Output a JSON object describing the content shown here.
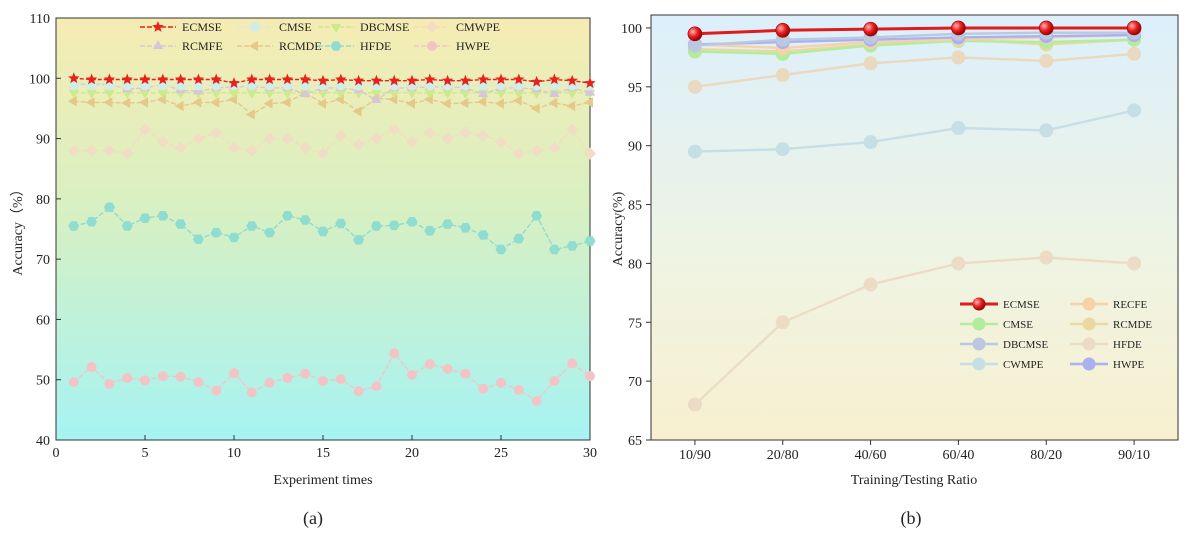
{
  "figure": {
    "caption_a": "(a)",
    "caption_b": "(b)"
  },
  "chart_data": [
    {
      "type": "line",
      "xlabel": "Experiment times",
      "ylabel": "Accuracy（%）",
      "xlim": [
        0,
        30
      ],
      "ylim": [
        40,
        110
      ],
      "xticks": [
        "0",
        "5",
        "10",
        "15",
        "20",
        "25",
        "30"
      ],
      "yticks": [
        "40",
        "50",
        "60",
        "70",
        "80",
        "90",
        "100",
        "110"
      ],
      "background": "vertical gradient: pale yellow (top) to cyan (bottom)",
      "legend_position": "top",
      "x": [
        1,
        2,
        3,
        4,
        5,
        6,
        7,
        8,
        9,
        10,
        11,
        12,
        13,
        14,
        15,
        16,
        17,
        18,
        19,
        20,
        21,
        22,
        23,
        24,
        25,
        26,
        27,
        28,
        29,
        30
      ],
      "series": [
        {
          "name": "ECMSE",
          "color": "#e8211b",
          "marker": "star",
          "values": [
            100,
            99.8,
            99.8,
            99.8,
            99.8,
            99.8,
            99.8,
            99.8,
            99.8,
            99.2,
            99.8,
            99.8,
            99.8,
            99.8,
            99.6,
            99.8,
            99.6,
            99.6,
            99.6,
            99.6,
            99.8,
            99.6,
            99.6,
            99.8,
            99.8,
            99.8,
            99.4,
            99.8,
            99.6,
            99.2
          ]
        },
        {
          "name": "CMSE",
          "color": "#cfeee8",
          "marker": "circle",
          "values": [
            98.8,
            98.8,
            98.8,
            98.8,
            98.8,
            98.8,
            98.8,
            98.8,
            98.8,
            98.8,
            98.8,
            98.8,
            98.8,
            98.8,
            98.8,
            98.8,
            98.8,
            98.8,
            98.8,
            98.8,
            98.8,
            98.8,
            98.8,
            98.8,
            98.8,
            98.8,
            98.8,
            98.8,
            98.8,
            98.8
          ]
        },
        {
          "name": "DBCMSE",
          "color": "#cde98a",
          "marker": "triangle-down",
          "values": [
            97.6,
            97.6,
            97.6,
            97.6,
            97.6,
            97.6,
            97.6,
            97.6,
            97.6,
            97.6,
            97.6,
            97.6,
            97.6,
            97.6,
            97.6,
            97.6,
            97.6,
            97.6,
            97.6,
            97.6,
            97.6,
            97.6,
            97.6,
            97.6,
            97.6,
            97.6,
            97.6,
            97.6,
            97.6,
            97.6
          ]
        },
        {
          "name": "CMWPE",
          "color": "#f1dcc4",
          "marker": "diamond",
          "values": [
            88,
            88,
            88,
            87.5,
            91.5,
            89.5,
            88.5,
            90,
            91,
            88.5,
            88,
            90,
            90,
            88.5,
            87.5,
            90.5,
            89,
            90,
            91.5,
            89.5,
            91,
            90,
            91,
            90.5,
            89.5,
            87.5,
            88,
            88.5,
            91.5,
            87.5
          ]
        },
        {
          "name": "RCMFE",
          "color": "#d7c6d8",
          "marker": "triangle-up",
          "values": [
            99,
            99,
            99,
            98.2,
            98.4,
            99,
            98,
            97.8,
            98.4,
            98.6,
            98.6,
            98.4,
            98.4,
            97.4,
            98.4,
            98.4,
            98,
            96.4,
            98.4,
            98.4,
            98.6,
            98.6,
            98.4,
            97.4,
            98.4,
            98.4,
            98.2,
            97.4,
            98.4,
            97.6
          ]
        },
        {
          "name": "RCMDE",
          "color": "#e5c98a",
          "marker": "triangle-left",
          "values": [
            96.2,
            96,
            96,
            95.9,
            96,
            96.5,
            95.4,
            96,
            96,
            96.5,
            94,
            95.8,
            96,
            97.6,
            95.8,
            96.5,
            94.5,
            96.7,
            96.5,
            95.8,
            96.5,
            95.8,
            95.9,
            96.1,
            95.8,
            96.3,
            95,
            95.9,
            95.4,
            96
          ]
        },
        {
          "name": "HFDE",
          "color": "#8fdcd0",
          "marker": "hexagon",
          "values": [
            75.5,
            76.2,
            78.6,
            75.5,
            76.8,
            77.2,
            75.8,
            73.3,
            74.4,
            73.6,
            75.5,
            74.4,
            77.2,
            76.5,
            74.6,
            75.9,
            73.2,
            75.5,
            75.6,
            76.2,
            74.7,
            75.8,
            75.2,
            74,
            71.6,
            73.4,
            77.2,
            71.6,
            72.2,
            73
          ]
        },
        {
          "name": "HWPE",
          "color": "#f3c4c6",
          "marker": "circle",
          "values": [
            49.6,
            52.1,
            49.3,
            50.3,
            49.9,
            50.6,
            50.5,
            49.6,
            48.2,
            51.1,
            47.9,
            49.5,
            50.3,
            51,
            49.8,
            50.1,
            48.1,
            48.9,
            54.4,
            50.8,
            52.6,
            51.8,
            51,
            48.5,
            49.5,
            48.3,
            46.5,
            49.8,
            52.7,
            50.6
          ]
        }
      ]
    },
    {
      "type": "line",
      "xlabel": "Training/Testing Ratio",
      "ylabel": "Accuracy(%)",
      "categories": [
        "10/90",
        "20/80",
        "40/60",
        "60/40",
        "80/20",
        "90/10"
      ],
      "ylim": [
        65,
        101
      ],
      "yticks": [
        "65",
        "70",
        "75",
        "80",
        "85",
        "90",
        "95",
        "100"
      ],
      "background": "vertical gradient: light blue (top) to pale yellow (bottom)",
      "legend_position": "lower-right",
      "series": [
        {
          "name": "ECMSE",
          "color": "#e01b1b",
          "values": [
            99.5,
            99.8,
            99.9,
            100,
            100,
            100
          ]
        },
        {
          "name": "RECFE",
          "color": "#f7d2a8",
          "values": [
            98.6,
            98.3,
            98.8,
            99.0,
            99.2,
            99.4
          ]
        },
        {
          "name": "CMSE",
          "color": "#b3ec9d",
          "values": [
            98.0,
            97.8,
            98.5,
            98.9,
            98.8,
            99.0
          ]
        },
        {
          "name": "RCMDE",
          "color": "#e9d9a0",
          "values": [
            98.2,
            98.0,
            98.6,
            99.0,
            98.6,
            99.0
          ]
        },
        {
          "name": "DBCMSE",
          "color": "#bcc7e0",
          "values": [
            98.5,
            99.0,
            99.2,
            99.5,
            99.6,
            99.6
          ]
        },
        {
          "name": "HFDE",
          "color": "#ecdcc6",
          "values": [
            68,
            75,
            78.2,
            80,
            80.5,
            80
          ]
        },
        {
          "name": "CWMPE",
          "color": "#c6dfe6",
          "values": [
            89.5,
            89.7,
            90.3,
            91.5,
            91.3,
            93.0
          ]
        },
        {
          "name": "HWPE",
          "color": "#a9b2ef",
          "values": [
            98.6,
            98.8,
            99.0,
            99.2,
            99.3,
            99.4
          ]
        },
        {
          "name": "",
          "color": "#ead9bf",
          "values": [
            95.0,
            96.0,
            97.0,
            97.5,
            97.2,
            97.8
          ]
        }
      ]
    }
  ]
}
